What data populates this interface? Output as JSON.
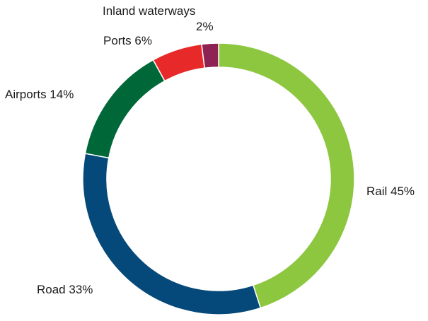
{
  "chart_data": {
    "type": "pie",
    "title": "",
    "donut": true,
    "start": "top, clockwise",
    "slices": [
      {
        "label": "Rail",
        "value": 45,
        "text": "Rail 45%",
        "color": "#8dc63f"
      },
      {
        "label": "Road",
        "value": 33,
        "text": "Road 33%",
        "color": "#05497a"
      },
      {
        "label": "Airports",
        "value": 14,
        "text": "Airports 14%",
        "color": "#006838"
      },
      {
        "label": "Ports",
        "value": 6,
        "text": "Ports 6%",
        "color": "#e8292a"
      },
      {
        "label": "Inland waterways",
        "value": 2,
        "text_lines": [
          "Inland waterways",
          "2%"
        ],
        "color": "#8e2252"
      }
    ]
  }
}
